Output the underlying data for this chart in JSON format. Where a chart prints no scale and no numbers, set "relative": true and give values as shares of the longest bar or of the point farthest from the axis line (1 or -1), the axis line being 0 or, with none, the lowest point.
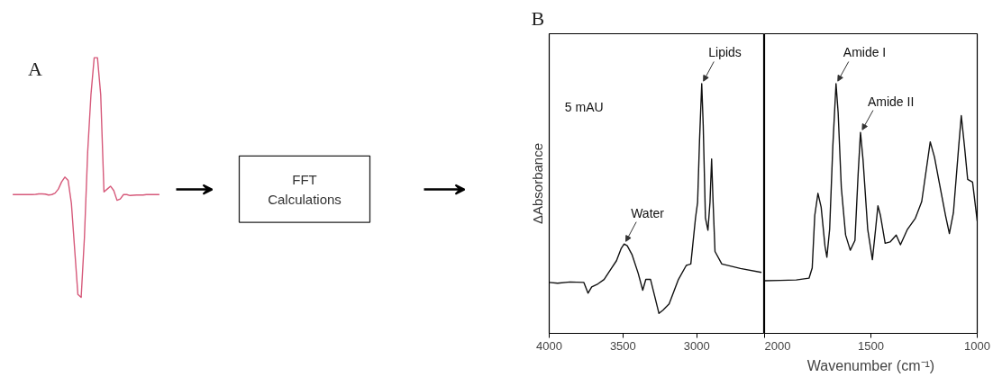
{
  "chart_data": [
    {
      "type": "line",
      "title": "A",
      "relative": true,
      "tick_labels": false,
      "color": "#d6597a",
      "categories": [
        null,
        null,
        null,
        null,
        null,
        null,
        null,
        null,
        null,
        null,
        null,
        null,
        null,
        null,
        null,
        null,
        null,
        null,
        null,
        null,
        null,
        null,
        null,
        null,
        null,
        null,
        null,
        null,
        null,
        null,
        null,
        null,
        null,
        null,
        null,
        null,
        null,
        null,
        null,
        null,
        null,
        null,
        null,
        null,
        null,
        null
      ],
      "values": [
        0.429,
        0.429,
        0.429,
        0.429,
        0.429,
        0.429,
        0.429,
        0.43,
        0.432,
        0.432,
        0.431,
        0.427,
        0.429,
        0.435,
        0.452,
        0.482,
        0.502,
        0.488,
        0.393,
        0.202,
        0.012,
        0,
        0.25,
        0.607,
        0.845,
        1,
        1,
        0.845,
        0.44,
        0.452,
        0.464,
        0.446,
        0.405,
        0.411,
        0.429,
        0.429,
        0.425,
        0.426,
        0.427,
        0.427,
        0.427,
        0.429,
        0.429,
        0.429,
        0.429,
        0.429
      ]
    },
    {
      "type": "other",
      "annotations": [
        "FFT Calculations"
      ]
    },
    {
      "type": "line",
      "title": "B",
      "ylabel": "ΔAbsorbance",
      "relative": true,
      "tick_labels": "x",
      "color": "#111111",
      "xlim": [
        4000,
        2540
      ],
      "xticks": [
        4000,
        3500,
        3000
      ],
      "x": [
        4000,
        3943,
        3859,
        3765,
        3737,
        3712,
        3670,
        3628,
        3586,
        3544,
        3513,
        3492,
        3471,
        3439,
        3397,
        3366,
        3345,
        3313,
        3282,
        3256,
        3229,
        3187,
        3124,
        3071,
        3040,
        3008,
        2994,
        2981,
        2966,
        2956,
        2941,
        2924,
        2910,
        2899,
        2889,
        2876,
        2830,
        2704,
        2561
      ],
      "values": [
        0.204,
        0.201,
        0.206,
        0.204,
        0.161,
        0.186,
        0.198,
        0.216,
        0.254,
        0.291,
        0.339,
        0.358,
        0.351,
        0.316,
        0.241,
        0.173,
        0.216,
        0.216,
        0.142,
        0.08,
        0.093,
        0.118,
        0.216,
        0.272,
        0.278,
        0.463,
        0.525,
        0.772,
        1,
        0.834,
        0.463,
        0.413,
        0.525,
        0.698,
        0.525,
        0.328,
        0.278,
        0.26,
        0.244
      ],
      "annotations": [
        "5 mAU",
        {
          "text": "Water",
          "x": 3492,
          "y": 0.358
        },
        {
          "text": "Lipids",
          "x": 2966,
          "y": 1
        }
      ]
    },
    {
      "type": "line",
      "xlabel": "Wavenumber (cm⁻¹)",
      "relative": true,
      "tick_labels": "x",
      "color": "#111111",
      "xlim": [
        2000,
        1000
      ],
      "xticks": [
        2000,
        1500,
        1000
      ],
      "x": [
        2000,
        1925,
        1851,
        1791,
        1776,
        1764,
        1749,
        1734,
        1716,
        1707,
        1694,
        1679,
        1664,
        1654,
        1639,
        1619,
        1597,
        1575,
        1560,
        1549,
        1537,
        1515,
        1493,
        1478,
        1467,
        1455,
        1433,
        1410,
        1381,
        1361,
        1328,
        1291,
        1261,
        1221,
        1201,
        1179,
        1149,
        1131,
        1112,
        1087,
        1075,
        1060,
        1045,
        1022,
        1000
      ],
      "values": [
        0.211,
        0.212,
        0.214,
        0.221,
        0.262,
        0.472,
        0.561,
        0.506,
        0.35,
        0.305,
        0.417,
        0.75,
        1,
        0.883,
        0.583,
        0.394,
        0.333,
        0.372,
        0.639,
        0.805,
        0.695,
        0.417,
        0.295,
        0.417,
        0.511,
        0.472,
        0.361,
        0.366,
        0.394,
        0.355,
        0.417,
        0.461,
        0.528,
        0.767,
        0.706,
        0.606,
        0.472,
        0.4,
        0.483,
        0.75,
        0.872,
        0.75,
        0.617,
        0.606,
        0.45
      ],
      "annotations": [
        {
          "text": "Amide I",
          "x": 1664,
          "y": 1
        },
        {
          "text": "Amide II",
          "x": 1549,
          "y": 0.805
        }
      ]
    }
  ]
}
